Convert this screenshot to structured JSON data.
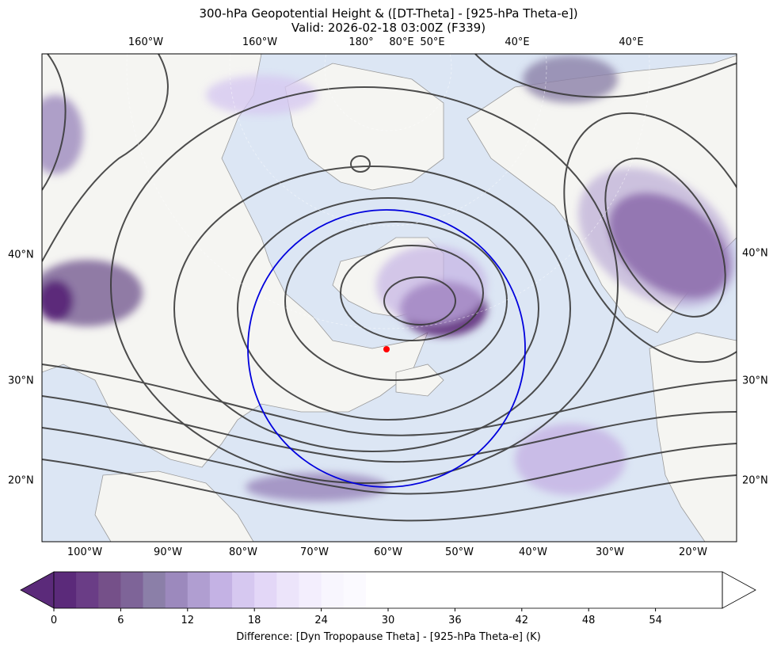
{
  "chart_data": {
    "type": "heatmap",
    "title": "300-hPa Geopotential Height & ([DT-Theta] - [925-hPa Theta-e])",
    "subtitle": "Valid: 2026-02-18 03:00Z (F339)",
    "top_lon_labels": [
      "160°W",
      "160°W",
      "180°",
      "80°E",
      "50°E",
      "40°E",
      "40°E"
    ],
    "bottom_lon_labels": [
      "100°W",
      "90°W",
      "80°W",
      "70°W",
      "60°W",
      "50°W",
      "40°W",
      "30°W",
      "20°W"
    ],
    "left_lat_labels": [
      "40°N",
      "30°N",
      "20°N"
    ],
    "right_lat_labels": [
      "40°N",
      "30°N",
      "20°N"
    ],
    "colorbar": {
      "label": "Difference: [Dyn Tropopause Theta] - [925-hPa Theta-e] (K)",
      "ticks": [
        0,
        6,
        12,
        18,
        24,
        30,
        36,
        42,
        48,
        54
      ],
      "range": [
        0,
        60
      ],
      "step": 2,
      "extend": "both",
      "colors": [
        "#5b2a7a",
        "#6a3d86",
        "#755089",
        "#7e6498",
        "#8b7fa8",
        "#9c89bd",
        "#b09ed1",
        "#c4b2e4",
        "#d6c8f0",
        "#e3d7f7",
        "#ece4fa",
        "#f3eefd",
        "#f8f6fe",
        "#fbfaff"
      ]
    },
    "center_marker": {
      "lon": -60,
      "lat": 33
    },
    "circle": "blue ring centered on marker",
    "contours": "300-hPa geopotential height, dark gray",
    "colors": {
      "contour": "#3a3a3a",
      "circle": "#0000dd",
      "marker": "#ff0000",
      "ocean": "#dce6f4",
      "land": "#f5f5f2"
    }
  }
}
